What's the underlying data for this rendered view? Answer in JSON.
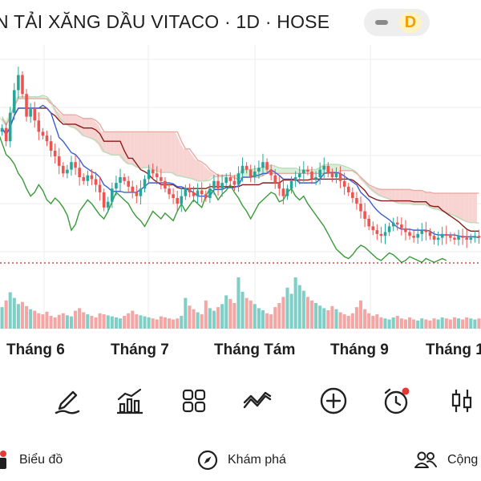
{
  "header": {
    "title": "N TẢI XĂNG DẦU VITACO · 1D · HOSE",
    "toggle_icon": "minus-icon",
    "interval_badge": "D"
  },
  "colors": {
    "up": "#26a69a",
    "down": "#ef5350",
    "up_volume": "#7fcfc6",
    "down_volume": "#f4a6a4",
    "conversion_line": "#3b5fcf",
    "base_line": "#8b1a1a",
    "lagging_span": "#3a9a3a",
    "cloud_bear": "#f7d4d1",
    "cloud_bull": "#d6efd8",
    "price_line": "#c62828"
  },
  "chart_data": {
    "type": "candlestick",
    "indicator": "ichimoku",
    "x_axis": {
      "tick_labels": [
        "Tháng 6",
        "Tháng 7",
        "Tháng Tám",
        "Tháng 9",
        "Tháng 1"
      ]
    },
    "candles_close_relative": [
      0.62,
      0.55,
      0.7,
      0.82,
      0.9,
      0.8,
      0.68,
      0.72,
      0.66,
      0.6,
      0.58,
      0.55,
      0.5,
      0.47,
      0.42,
      0.38,
      0.4,
      0.44,
      0.41,
      0.36,
      0.34,
      0.37,
      0.35,
      0.32,
      0.28,
      0.2,
      0.23,
      0.3,
      0.33,
      0.36,
      0.34,
      0.31,
      0.28,
      0.26,
      0.3,
      0.35,
      0.4,
      0.38,
      0.36,
      0.34,
      0.3,
      0.27,
      0.25,
      0.22,
      0.26,
      0.3,
      0.28,
      0.26,
      0.29,
      0.27,
      0.25,
      0.3,
      0.34,
      0.3,
      0.33,
      0.36,
      0.34,
      0.32,
      0.38,
      0.42,
      0.4,
      0.36,
      0.39,
      0.41,
      0.44,
      0.4,
      0.37,
      0.33,
      0.3,
      0.26,
      0.3,
      0.34,
      0.36,
      0.38,
      0.4,
      0.39,
      0.35,
      0.36,
      0.4,
      0.42,
      0.38,
      0.36,
      0.38,
      0.34,
      0.31,
      0.28,
      0.25,
      0.22,
      0.18,
      0.14,
      0.1,
      0.08,
      0.06,
      0.05,
      0.07,
      0.1,
      0.12,
      0.11,
      0.09,
      0.07,
      0.05,
      0.04,
      0.06,
      0.08,
      0.07,
      0.05,
      0.03,
      0.04,
      0.06,
      0.05,
      0.04,
      0.03,
      0.05,
      0.04,
      0.03,
      0.04,
      0.05,
      0.04
    ],
    "volume_relative": [
      0.42,
      0.55,
      0.71,
      0.6,
      0.48,
      0.52,
      0.44,
      0.38,
      0.35,
      0.3,
      0.28,
      0.33,
      0.25,
      0.22,
      0.27,
      0.3,
      0.26,
      0.24,
      0.35,
      0.4,
      0.32,
      0.28,
      0.25,
      0.22,
      0.3,
      0.28,
      0.26,
      0.24,
      0.22,
      0.2,
      0.25,
      0.3,
      0.35,
      0.28,
      0.26,
      0.24,
      0.22,
      0.2,
      0.18,
      0.24,
      0.22,
      0.2,
      0.18,
      0.2,
      0.25,
      0.6,
      0.45,
      0.38,
      0.32,
      0.28,
      0.55,
      0.4,
      0.35,
      0.42,
      0.48,
      0.65,
      0.58,
      0.5,
      1.0,
      0.72,
      0.6,
      0.55,
      0.48,
      0.4,
      0.36,
      0.3,
      0.28,
      0.42,
      0.5,
      0.62,
      0.8,
      0.68,
      1.0,
      0.85,
      0.74,
      0.62,
      0.55,
      0.5,
      0.45,
      0.4,
      0.36,
      0.44,
      0.38,
      0.32,
      0.28,
      0.25,
      0.3,
      0.42,
      0.55,
      0.38,
      0.3,
      0.25,
      0.28,
      0.22,
      0.2,
      0.18,
      0.22,
      0.25,
      0.2,
      0.18,
      0.22,
      0.18,
      0.16,
      0.2,
      0.18,
      0.16,
      0.2,
      0.18,
      0.22,
      0.2,
      0.18,
      0.22,
      0.2,
      0.18,
      0.22,
      0.2,
      0.18,
      0.2
    ]
  },
  "toolbar": {
    "items": [
      {
        "icon": "pen-draw-icon"
      },
      {
        "icon": "indicator-chart-icon"
      },
      {
        "icon": "grid-layout-icon"
      },
      {
        "icon": "compare-lines-icon"
      },
      {
        "icon": "add-circle-icon"
      },
      {
        "icon": "alarm-clock-icon"
      },
      {
        "icon": "candlestick-icon"
      }
    ]
  },
  "nav": {
    "items": [
      {
        "label": "Biểu đồ",
        "icon": "chart-tab-icon"
      },
      {
        "label": "Khám phá",
        "icon": "compass-icon"
      },
      {
        "label": "Cộng",
        "icon": "community-icon"
      }
    ]
  }
}
